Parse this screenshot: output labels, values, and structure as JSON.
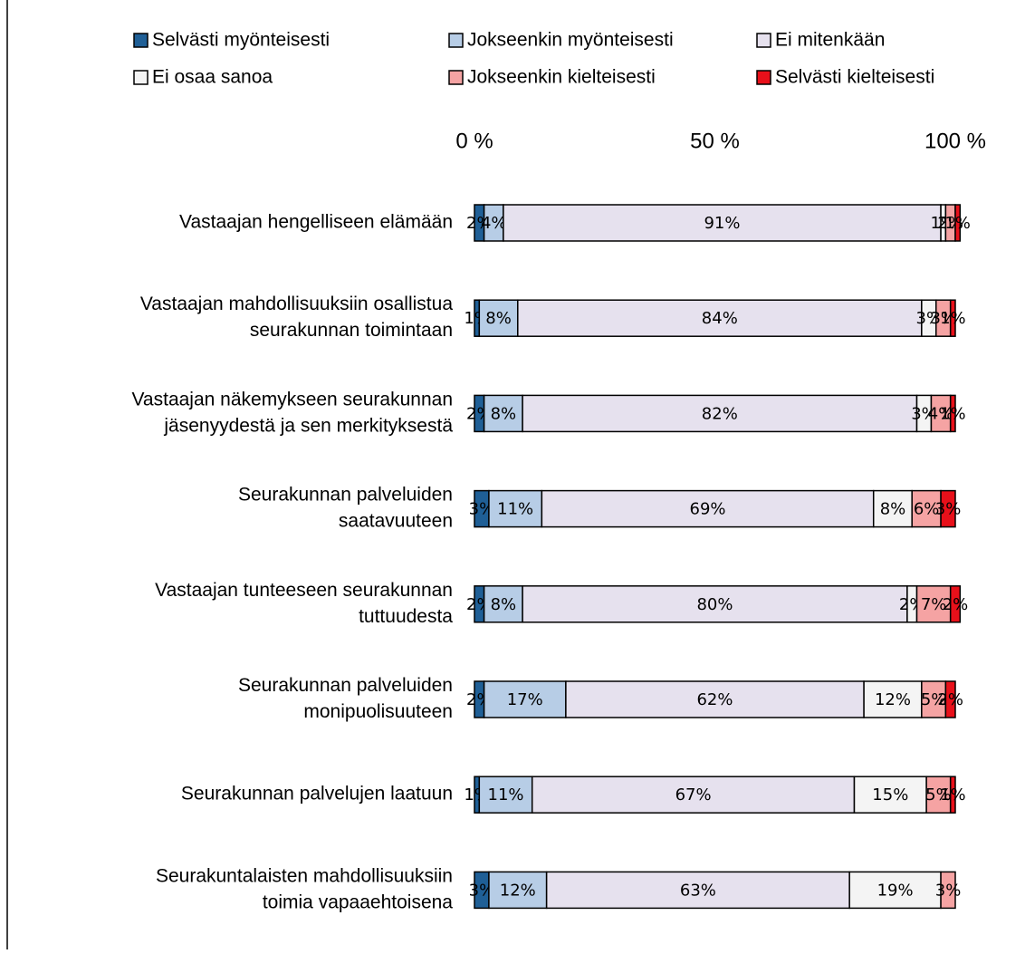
{
  "chart_data": {
    "type": "stacked-bar-horizontal",
    "categories": [
      [
        "Vastaajan hengelliseen elämään"
      ],
      [
        "Vastaajan mahdollisuuksiin osallistua",
        "seurakunnan toimintaan"
      ],
      [
        "Vastaajan näkemykseen seurakunnan",
        "jäsenyydestä ja sen merkityksestä"
      ],
      [
        "Seurakunnan palveluiden",
        "saatavuuteen"
      ],
      [
        "Vastaajan tunteeseen seurakunnan",
        "tuttuudesta"
      ],
      [
        "Seurakunnan palveluiden",
        "monipuolisuuteen"
      ],
      [
        "Seurakunnan palvelujen laatuun"
      ],
      [
        "Seurakuntalaisten mahdollisuuksiin",
        "toimia vapaaehtoisena"
      ]
    ],
    "series": [
      {
        "name": "Selvästi myönteisesti",
        "color": "#1f5f96",
        "values": [
          2,
          1,
          2,
          3,
          2,
          2,
          1,
          3
        ],
        "value_labels": [
          "2%",
          "1%",
          "2%",
          "3%",
          "2%",
          "2%",
          "1%",
          "3%"
        ]
      },
      {
        "name": "Jokseenkin myönteisesti",
        "color": "#b7cde6",
        "values": [
          4,
          8,
          8,
          11,
          8,
          17,
          11,
          12
        ],
        "value_labels": [
          "4%",
          "8%",
          "8%",
          "11%",
          "8%",
          "17%",
          "11%",
          "12%"
        ]
      },
      {
        "name": "Ei mitenkään",
        "color": "#e6e1ee",
        "values": [
          91,
          84,
          82,
          69,
          80,
          62,
          67,
          63
        ],
        "value_labels": [
          "91%",
          "84%",
          "82%",
          "69%",
          "80%",
          "62%",
          "67%",
          "63%"
        ]
      },
      {
        "name": "Ei osaa sanoa",
        "color": "#f4f4f4",
        "values": [
          1,
          3,
          3,
          8,
          2,
          12,
          15,
          19
        ],
        "value_labels": [
          "1%",
          "3%",
          "3%",
          "8%",
          "2%",
          "12%",
          "15%",
          "19%"
        ]
      },
      {
        "name": "Jokseenkin kielteisesti",
        "color": "#f5a3a3",
        "values": [
          2,
          3,
          4,
          6,
          7,
          5,
          5,
          3
        ],
        "value_labels": [
          "2%",
          "3%",
          "4%",
          "6%",
          "7%",
          "5%",
          "5%",
          "3%"
        ]
      },
      {
        "name": "Selvästi kielteisesti",
        "color": "#e8101a",
        "values": [
          1,
          1,
          1,
          3,
          2,
          2,
          1,
          null
        ],
        "value_labels": [
          "1%",
          "1%",
          "1%",
          "3%",
          "2%",
          "2%",
          "1%",
          null
        ]
      }
    ],
    "xlim": [
      0,
      100
    ],
    "xticks": [
      {
        "value": 0,
        "label": "0 %"
      },
      {
        "value": 50,
        "label": "50 %"
      },
      {
        "value": 100,
        "label": "100 %"
      }
    ]
  }
}
